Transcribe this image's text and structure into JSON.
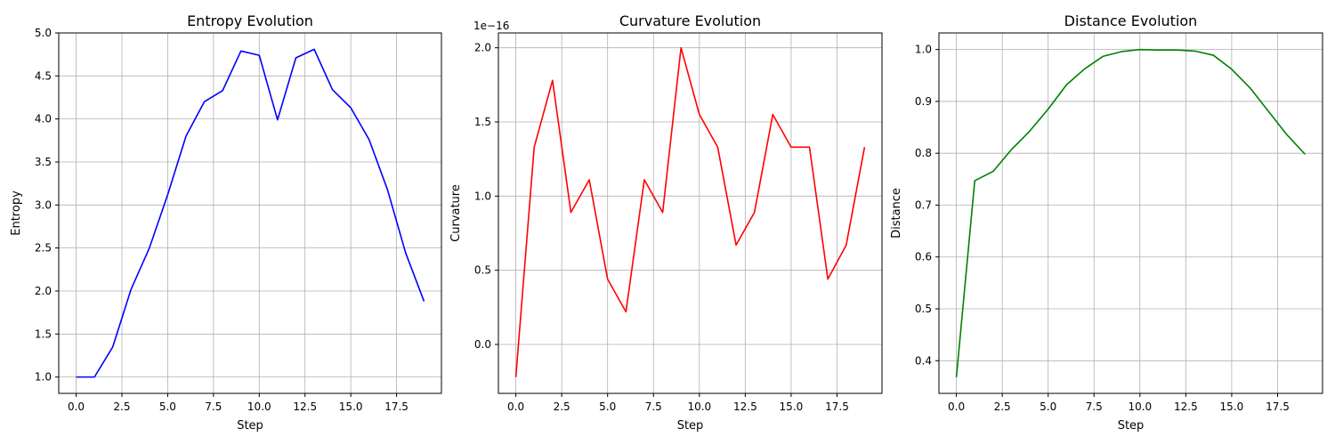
{
  "chart_data": [
    {
      "type": "line",
      "title": "Entropy Evolution",
      "xlabel": "Step",
      "ylabel": "Entropy",
      "xlim": [
        -0.95,
        19.95
      ],
      "ylim": [
        0.81,
        5.0
      ],
      "xticks": [
        0,
        2.5,
        5,
        7.5,
        10,
        12.5,
        15,
        17.5
      ],
      "xtick_labels": [
        "0.0",
        "2.5",
        "5.0",
        "7.5",
        "10.0",
        "12.5",
        "15.0",
        "17.5"
      ],
      "yticks": [
        1.0,
        1.5,
        2.0,
        2.5,
        3.0,
        3.5,
        4.0,
        4.5,
        5.0
      ],
      "ytick_labels": [
        "1.0",
        "1.5",
        "2.0",
        "2.5",
        "3.0",
        "3.5",
        "4.0",
        "4.5",
        "5.0"
      ],
      "grid": true,
      "color": "#0000ff",
      "series": [
        {
          "x": [
            0,
            1,
            2,
            3,
            4,
            5,
            6,
            7,
            8,
            9,
            10,
            11,
            12,
            13,
            14,
            15,
            16,
            17,
            18,
            19
          ],
          "values": [
            1.0,
            1.0,
            1.35,
            2.02,
            2.5,
            3.12,
            3.8,
            4.2,
            4.33,
            4.79,
            4.74,
            3.99,
            4.71,
            4.81,
            4.34,
            4.13,
            3.76,
            3.18,
            2.44,
            1.88
          ]
        }
      ]
    },
    {
      "type": "line",
      "title": "Curvature Evolution",
      "xlabel": "Step",
      "ylabel": "Curvature",
      "offset_label": "1e−16",
      "xlim": [
        -0.95,
        19.95
      ],
      "ylim": [
        -0.33,
        2.1
      ],
      "xticks": [
        0,
        2.5,
        5,
        7.5,
        10,
        12.5,
        15,
        17.5
      ],
      "xtick_labels": [
        "0.0",
        "2.5",
        "5.0",
        "7.5",
        "10.0",
        "12.5",
        "15.0",
        "17.5"
      ],
      "yticks": [
        0.0,
        0.5,
        1.0,
        1.5,
        2.0
      ],
      "ytick_labels": [
        "0.0",
        "0.5",
        "1.0",
        "1.5",
        "2.0"
      ],
      "grid": true,
      "color": "#ff0000",
      "series": [
        {
          "x": [
            0,
            1,
            2,
            3,
            4,
            5,
            6,
            7,
            8,
            9,
            10,
            11,
            12,
            13,
            14,
            15,
            16,
            17,
            18,
            19
          ],
          "values": [
            -0.22,
            1.33,
            1.78,
            0.89,
            1.11,
            0.44,
            0.22,
            1.11,
            0.89,
            2.0,
            1.55,
            1.33,
            0.67,
            0.89,
            1.55,
            1.33,
            1.33,
            0.44,
            0.67,
            1.33
          ]
        }
      ]
    },
    {
      "type": "line",
      "title": "Distance Evolution",
      "xlabel": "Step",
      "ylabel": "Distance",
      "xlim": [
        -0.95,
        19.95
      ],
      "ylim": [
        0.337,
        1.032
      ],
      "xticks": [
        0,
        2.5,
        5,
        7.5,
        10,
        12.5,
        15,
        17.5
      ],
      "xtick_labels": [
        "0.0",
        "2.5",
        "5.0",
        "7.5",
        "10.0",
        "12.5",
        "15.0",
        "17.5"
      ],
      "yticks": [
        0.4,
        0.5,
        0.6,
        0.7,
        0.8,
        0.9,
        1.0
      ],
      "ytick_labels": [
        "0.4",
        "0.5",
        "0.6",
        "0.7",
        "0.8",
        "0.9",
        "1.0"
      ],
      "grid": true,
      "color": "#008000",
      "series": [
        {
          "x": [
            0,
            1,
            2,
            3,
            4,
            5,
            6,
            7,
            8,
            9,
            10,
            11,
            12,
            13,
            14,
            15,
            16,
            17,
            18,
            19
          ],
          "values": [
            0.368,
            0.747,
            0.765,
            0.807,
            0.843,
            0.885,
            0.932,
            0.963,
            0.987,
            0.996,
            1.0,
            0.999,
            0.999,
            0.997,
            0.989,
            0.962,
            0.926,
            0.881,
            0.836,
            0.798
          ]
        }
      ]
    }
  ]
}
